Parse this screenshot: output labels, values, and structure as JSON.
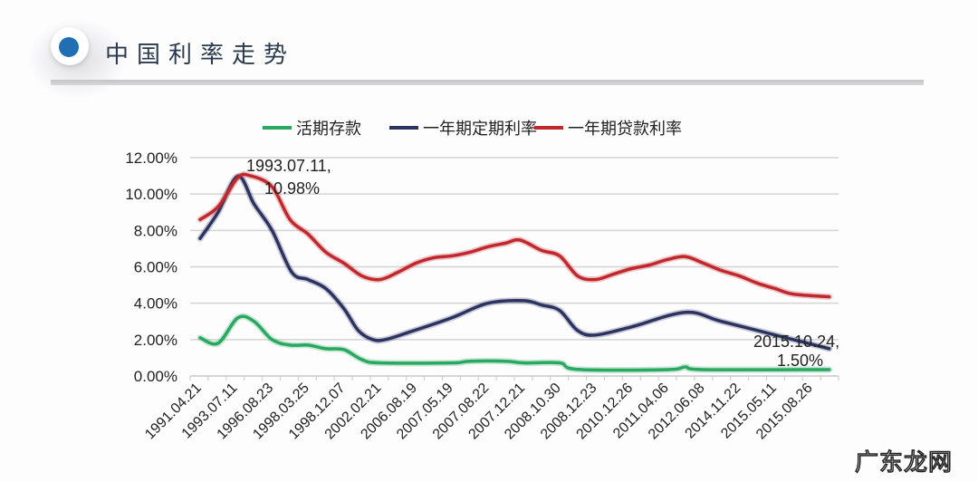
{
  "header": {
    "title": "中国利率走势"
  },
  "watermark": "广东龙网",
  "chart_data": {
    "type": "line",
    "title": "",
    "xlabel": "",
    "ylabel": "",
    "categories": [
      "1991.04.21",
      "1993.07.11",
      "1996.08.23",
      "1998.03.25",
      "1998.12.07",
      "2002.02.21",
      "2006.08.19",
      "2007.05.19",
      "2007.08.22",
      "2007.12.21",
      "2008.10.30",
      "2008.12.23",
      "2010.12.26",
      "2011.04.06",
      "2012.06.08",
      "2014.11.22",
      "2015.05.11",
      "2015.08.26"
    ],
    "yticks": [
      "0.00%",
      "2.00%",
      "4.00%",
      "6.00%",
      "8.00%",
      "10.00%",
      "12.00%"
    ],
    "ylim": [
      0,
      12
    ],
    "grid": true,
    "legend_placement": "top",
    "series": [
      {
        "name": "活期存款",
        "color": "#2aa860",
        "points": [
          [
            0,
            2.1
          ],
          [
            0.5,
            1.8
          ],
          [
            1.05,
            3.2
          ],
          [
            1.5,
            3.0
          ],
          [
            2,
            2.0
          ],
          [
            2.5,
            1.7
          ],
          [
            3,
            1.7
          ],
          [
            3.5,
            1.5
          ],
          [
            4,
            1.45
          ],
          [
            4.5,
            0.9
          ],
          [
            5,
            0.72
          ],
          [
            7,
            0.72
          ],
          [
            7.5,
            0.81
          ],
          [
            8.5,
            0.81
          ],
          [
            9,
            0.72
          ],
          [
            10,
            0.72
          ],
          [
            10.5,
            0.36
          ],
          [
            13,
            0.35
          ],
          [
            13.5,
            0.5
          ],
          [
            14,
            0.35
          ],
          [
            17.5,
            0.35
          ]
        ]
      },
      {
        "name": "一年期定期利率",
        "color": "#2c3360",
        "points": [
          [
            0,
            7.56
          ],
          [
            0.5,
            9.0
          ],
          [
            1.05,
            10.98
          ],
          [
            1.5,
            9.45
          ],
          [
            2,
            8.0
          ],
          [
            2.55,
            5.7
          ],
          [
            3,
            5.3
          ],
          [
            3.5,
            4.8
          ],
          [
            4,
            3.7
          ],
          [
            4.4,
            2.5
          ],
          [
            4.8,
            2.0
          ],
          [
            5.15,
            2.0
          ],
          [
            5.8,
            2.4
          ],
          [
            7,
            3.2
          ],
          [
            8,
            4.0
          ],
          [
            9,
            4.14
          ],
          [
            9.5,
            3.9
          ],
          [
            10,
            3.6
          ],
          [
            10.5,
            2.5
          ],
          [
            11,
            2.25
          ],
          [
            12,
            2.7
          ],
          [
            13.5,
            3.5
          ],
          [
            14.5,
            3.0
          ],
          [
            16,
            2.25
          ],
          [
            17.5,
            1.5
          ]
        ]
      },
      {
        "name": "一年期贷款利率",
        "color": "#c0282d",
        "points": [
          [
            0,
            8.6
          ],
          [
            0.5,
            9.3
          ],
          [
            1.05,
            10.9
          ],
          [
            1.4,
            11.0
          ],
          [
            2,
            10.4
          ],
          [
            2.5,
            8.6
          ],
          [
            3,
            7.8
          ],
          [
            3.5,
            6.8
          ],
          [
            4,
            6.2
          ],
          [
            4.5,
            5.5
          ],
          [
            5,
            5.3
          ],
          [
            5.5,
            5.7
          ],
          [
            6,
            6.2
          ],
          [
            6.5,
            6.5
          ],
          [
            7,
            6.6
          ],
          [
            7.5,
            6.8
          ],
          [
            8,
            7.1
          ],
          [
            8.5,
            7.3
          ],
          [
            8.9,
            7.47
          ],
          [
            9.5,
            6.9
          ],
          [
            10,
            6.6
          ],
          [
            10.5,
            5.5
          ],
          [
            11,
            5.3
          ],
          [
            11.5,
            5.6
          ],
          [
            12,
            5.9
          ],
          [
            12.5,
            6.1
          ],
          [
            13,
            6.4
          ],
          [
            13.5,
            6.56
          ],
          [
            14,
            6.2
          ],
          [
            14.5,
            5.8
          ],
          [
            15,
            5.5
          ],
          [
            15.5,
            5.1
          ],
          [
            16,
            4.8
          ],
          [
            16.5,
            4.5
          ],
          [
            17.5,
            4.35
          ]
        ]
      }
    ],
    "annotations": [
      {
        "lines": [
          "1993.07.11,",
          "10.98%"
        ],
        "x": 1.05,
        "y": 10.98
      },
      {
        "lines": [
          "2015.10.24,",
          "1.50%"
        ],
        "x": 17.5,
        "y": 1.5
      }
    ]
  }
}
